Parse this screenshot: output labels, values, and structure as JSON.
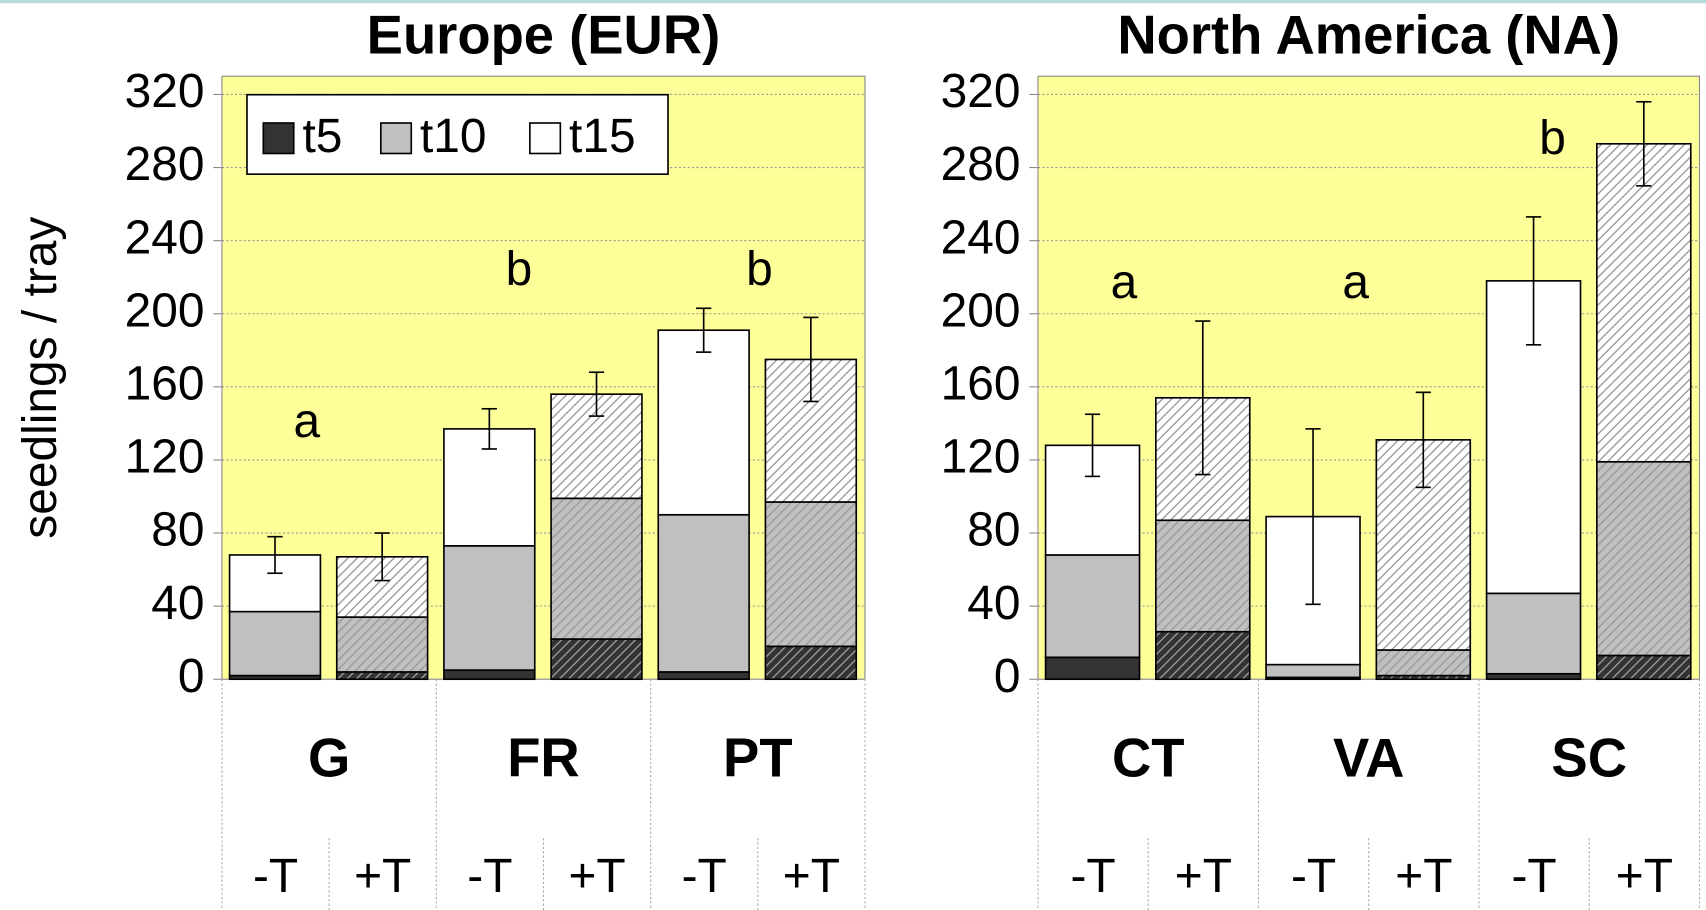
{
  "chart_data": [
    {
      "type": "bar",
      "stacked": true,
      "title": "Europe (EUR)",
      "y_label": "seedlings / tray",
      "groups": [
        "G",
        "FR",
        "PT"
      ],
      "categories": [
        "-T",
        "+T",
        "-T",
        "+T",
        "-T",
        "+T"
      ],
      "letters": [
        "a",
        "b",
        "b"
      ],
      "series": [
        {
          "name": "t5",
          "color": "#333333",
          "values": [
            2,
            4,
            5,
            22,
            4,
            18
          ]
        },
        {
          "name": "t10",
          "color": "#c0c0c0",
          "values": [
            35,
            30,
            68,
            77,
            86,
            79
          ]
        },
        {
          "name": "t15",
          "color": "#ffffff",
          "values": [
            31,
            33,
            64,
            57,
            101,
            78
          ],
          "errors": [
            10,
            13,
            11,
            12,
            12,
            23
          ]
        }
      ],
      "ylim": [
        0,
        330
      ],
      "yticks": [
        0,
        40,
        80,
        120,
        160,
        200,
        240,
        280,
        320
      ],
      "grid": true,
      "legend": "upper left"
    },
    {
      "type": "bar",
      "stacked": true,
      "title": "North America (NA)",
      "groups": [
        "CT",
        "VA",
        "SC"
      ],
      "categories": [
        "-T",
        "+T",
        "-T",
        "+T",
        "-T",
        "+T"
      ],
      "letters": [
        "a",
        "a",
        "b"
      ],
      "series": [
        {
          "name": "t5",
          "color": "#333333",
          "values": [
            12,
            26,
            1,
            2,
            3,
            13
          ]
        },
        {
          "name": "t10",
          "color": "#c0c0c0",
          "values": [
            56,
            61,
            7,
            14,
            44,
            106
          ]
        },
        {
          "name": "t15",
          "color": "#ffffff",
          "values": [
            60,
            67,
            81,
            115,
            171,
            174
          ],
          "errors": [
            17,
            42,
            48,
            26,
            35,
            23
          ]
        }
      ],
      "ylim": [
        0,
        330
      ],
      "yticks": [
        0,
        40,
        80,
        120,
        160,
        200,
        240,
        280,
        320
      ],
      "grid": true
    }
  ]
}
